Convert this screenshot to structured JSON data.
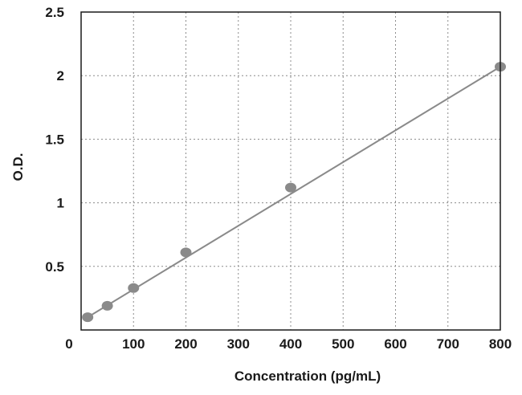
{
  "chart_data": {
    "type": "scatter",
    "title": "",
    "xlabel": "Concentration (pg/mL)",
    "ylabel": "O.D.",
    "xlim": [
      0,
      800
    ],
    "ylim": [
      0,
      2.5
    ],
    "x_ticks": [
      {
        "value": 0,
        "label": "0"
      },
      {
        "value": 100,
        "label": "100"
      },
      {
        "value": 200,
        "label": "200"
      },
      {
        "value": 300,
        "label": "300"
      },
      {
        "value": 400,
        "label": "400"
      },
      {
        "value": 500,
        "label": "500"
      },
      {
        "value": 600,
        "label": "600"
      },
      {
        "value": 700,
        "label": "700"
      },
      {
        "value": 800,
        "label": "800"
      }
    ],
    "y_ticks": [
      {
        "value": 0.5,
        "label": "0.5"
      },
      {
        "value": 1,
        "label": "1"
      },
      {
        "value": 1.5,
        "label": "1.5"
      },
      {
        "value": 2,
        "label": "2"
      },
      {
        "value": 2.5,
        "label": "2.5"
      }
    ],
    "grid": true,
    "legend": "none",
    "series": [
      {
        "points": [
          {
            "x": 12.5,
            "y": 0.1
          },
          {
            "x": 50,
            "y": 0.19
          },
          {
            "x": 100,
            "y": 0.33
          },
          {
            "x": 200,
            "y": 0.61
          },
          {
            "x": 400,
            "y": 1.12
          },
          {
            "x": 800,
            "y": 2.07
          }
        ]
      }
    ],
    "fit_line": {
      "from": [
        12.5,
        0.1
      ],
      "to": [
        800,
        2.07
      ]
    },
    "colors": {
      "point": "#8a8a8a",
      "line": "#8a8a8a",
      "grid": "#8c8c8c",
      "frame": "#1a1a1a"
    }
  }
}
